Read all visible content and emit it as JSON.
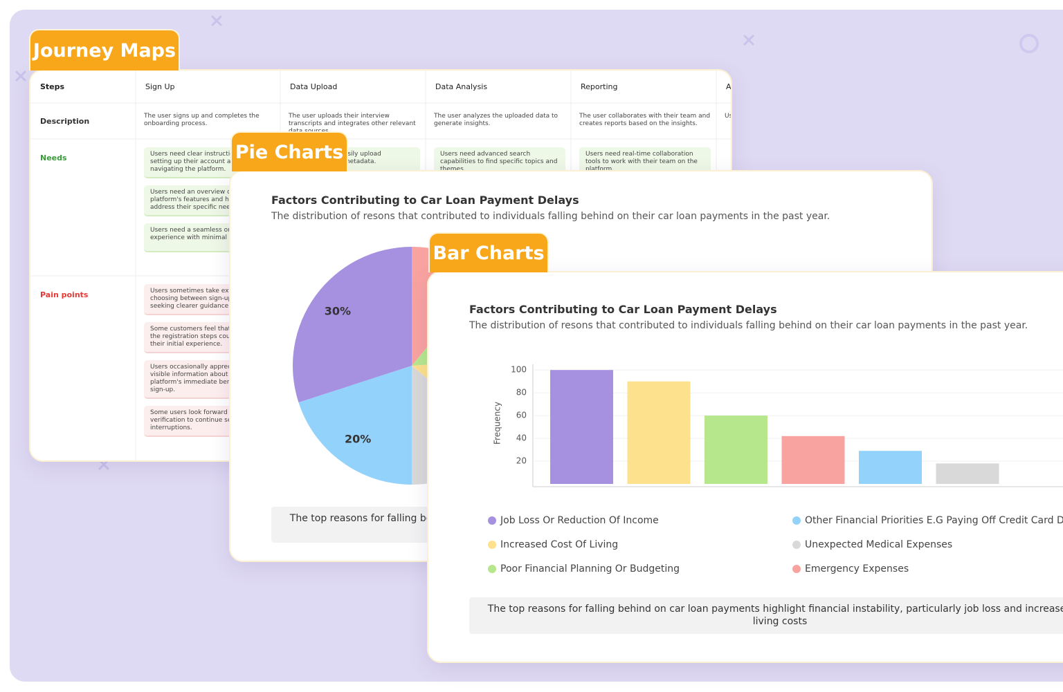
{
  "tabs": [
    "Journey Maps",
    "Pie Charts",
    "Bar Charts"
  ],
  "journey_map": {
    "columns": [
      "Steps",
      "Sign Up",
      "Data Upload",
      "Data Analysis",
      "Reporting",
      "Ac"
    ],
    "rows": [
      {
        "label": "Description",
        "kind": "text",
        "cells": [
          [
            "The user signs up and completes the onboarding process."
          ],
          [
            "The user uploads their interview transcripts and integrates other relevant data sources."
          ],
          [
            "The user analyzes the uploaded data to generate insights."
          ],
          [
            "The user collaborates with their team and creates reports based on the insights."
          ],
          [
            "Us th"
          ]
        ]
      },
      {
        "label": "Needs",
        "kind": "need",
        "cells": [
          [
            "Users need clear instructions for setting up their account and navigating the platform.",
            "Users need an overview of the platform's features and how they address their specific needs.",
            "Users need a seamless onboarding experience with minimal steps."
          ],
          [
            "Users need to easily upload transcripts and metadata."
          ],
          [
            "Users need advanced search capabilities to find specific topics and themes."
          ],
          [
            "Users need real-time collaboration tools to work with their team on the platform."
          ],
          []
        ]
      },
      {
        "label": "Pain points",
        "kind": "pain",
        "cells": [
          [
            "Users sometimes take extra time choosing between sign-up options, seeking clearer guidance.",
            "Some customers feel that some of the registration steps could simplify their initial experience.",
            "Users occasionally appreciate more visible information about the platform's immediate benefits during sign-up.",
            "Some users look forward to email verification to continue setup without interruptions."
          ],
          [],
          [],
          [],
          []
        ]
      }
    ]
  },
  "chart_data": [
    {
      "type": "pie",
      "title": "Factors Contributing to Car Loan Payment Delays",
      "subtitle": "The distribution of resons that contributed to individuals falling behind on their car loan payments in the past year.",
      "values": [
        11,
        13,
        12,
        14,
        20,
        30
      ],
      "value_labels": [
        null,
        null,
        null,
        null,
        "20%",
        "30%"
      ],
      "colors": [
        "#f9a3a0",
        "#b6e78d",
        "#fde18d",
        "#d9d9d9",
        "#93d2fb",
        "#a690e0"
      ],
      "note": "The top reasons for falling behind on car loan payments highlight financial instability, particularly job loss and increased living costs"
    },
    {
      "type": "bar",
      "title": "Factors Contributing to Car Loan Payment Delays",
      "subtitle": "The distribution of resons that contributed to individuals falling behind on their car loan payments in the past year.",
      "y_label": "Frequency",
      "categories": [
        "Job Loss Or Reduction Of Income",
        "Increased Cost Of Living",
        "Poor Financial Planning Or Budgeting",
        "Emergency Expenses",
        "Other Financial Priorities E.G Paying Off Credit Card Debt",
        "Unexpected Medical Expenses"
      ],
      "values": [
        100,
        90,
        60,
        42,
        29,
        18
      ],
      "colors": [
        "#a690e0",
        "#fde18d",
        "#b6e78d",
        "#f9a3a0",
        "#93d2fb",
        "#d9d9d9"
      ],
      "ylim": [
        0,
        105
      ],
      "yticks": [
        20,
        40,
        60,
        80,
        100
      ],
      "grid": true,
      "note": "The top reasons for falling behind on car loan payments highlight financial instability, particularly job loss and increased living costs"
    }
  ]
}
